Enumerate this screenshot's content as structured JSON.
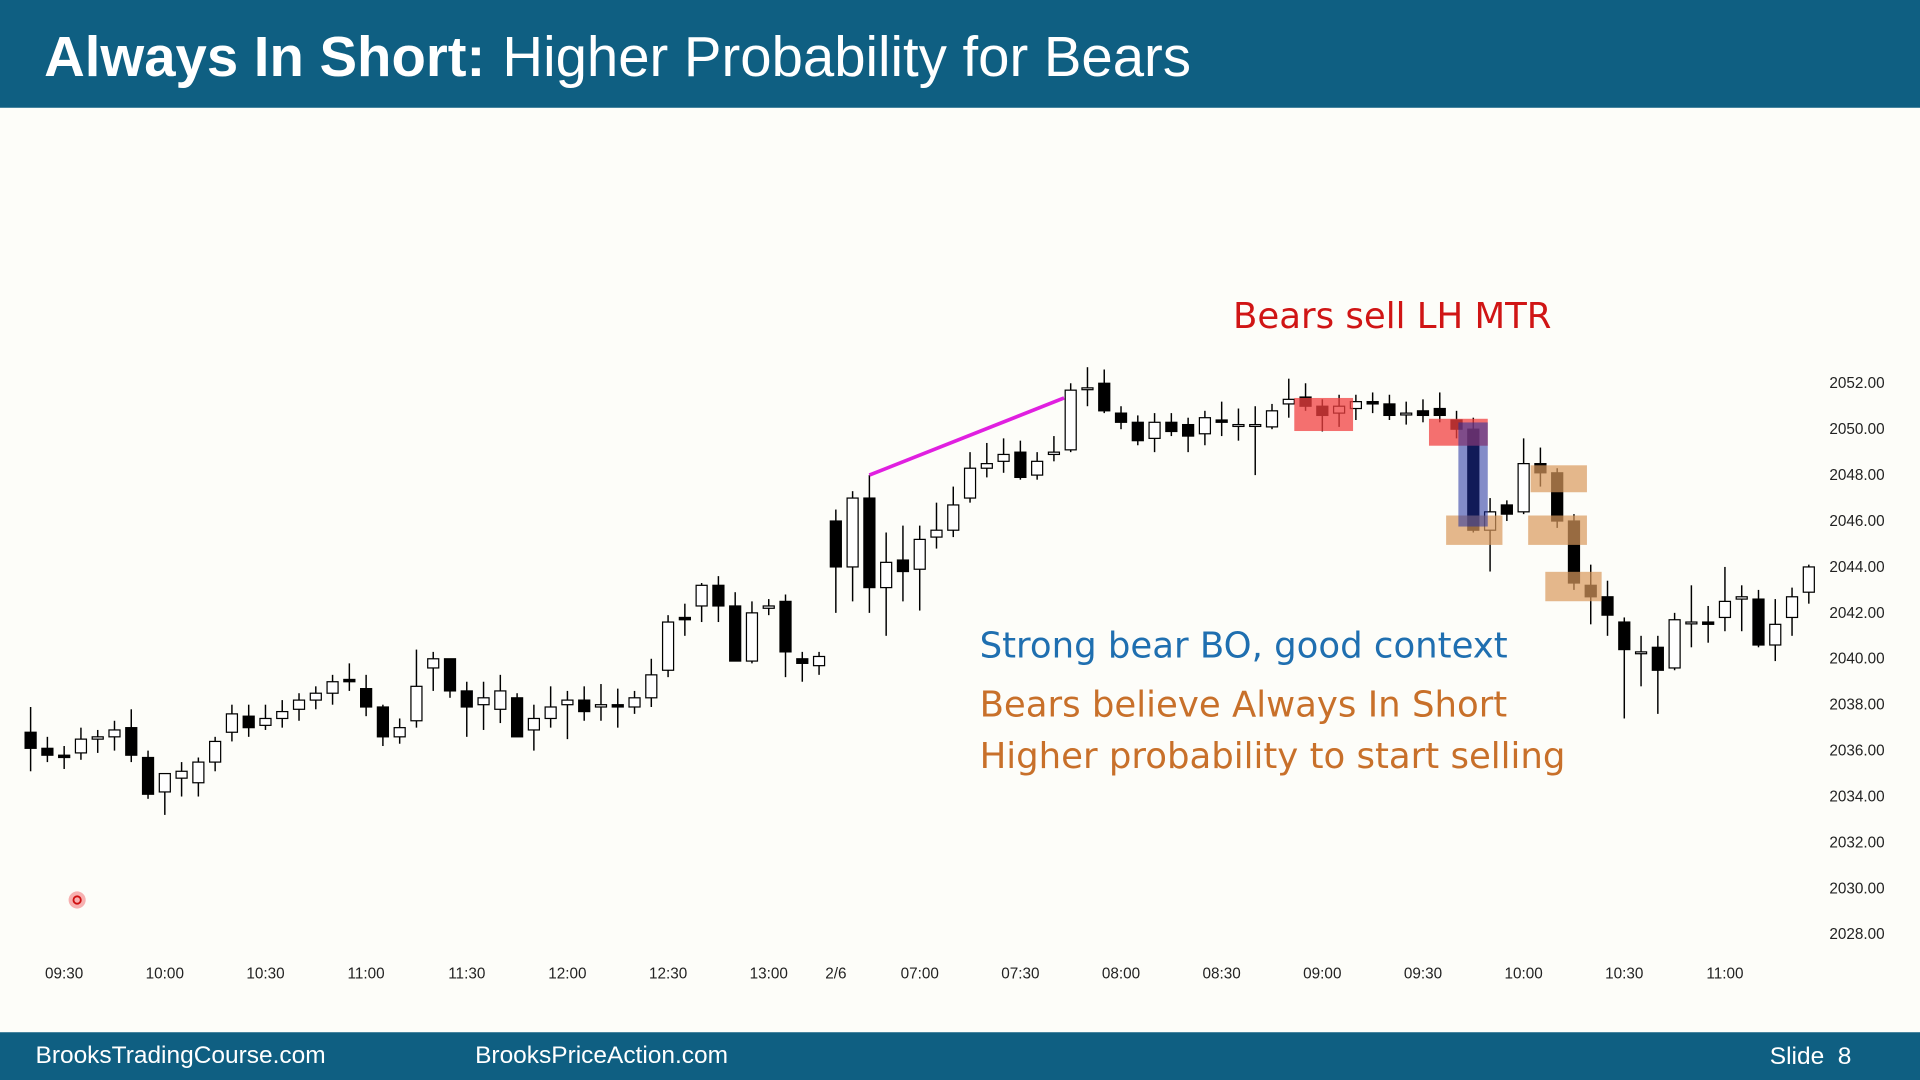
{
  "header": {
    "title_bold": "Always In Short:",
    "title_rest": "Higher Probability for Bears"
  },
  "chart_data": {
    "type": "candlestick",
    "categories": [
      null,
      null,
      "09:30",
      null,
      null,
      null,
      null,
      null,
      "10:00",
      null,
      null,
      null,
      null,
      null,
      "10:30",
      null,
      null,
      null,
      null,
      null,
      "11:00",
      null,
      null,
      null,
      null,
      null,
      "11:30",
      null,
      null,
      null,
      null,
      null,
      "12:00",
      null,
      null,
      null,
      null,
      null,
      "12:30",
      null,
      null,
      null,
      null,
      null,
      "13:00",
      null,
      null,
      null,
      "2/6",
      null,
      null,
      null,
      null,
      "07:00",
      null,
      null,
      null,
      null,
      null,
      "07:30",
      null,
      null,
      null,
      null,
      null,
      "08:00",
      null,
      null,
      null,
      null,
      null,
      "08:30",
      null,
      null,
      null,
      null,
      null,
      "09:00",
      null,
      null,
      null,
      null,
      null,
      "09:30",
      null,
      null,
      null,
      null,
      null,
      "10:00",
      null,
      null,
      null,
      null,
      null,
      "10:30",
      null,
      null,
      null,
      null,
      null,
      "11:00",
      null,
      null,
      null,
      null,
      null
    ],
    "ohlc": [
      [
        2036.8,
        2037.9,
        2035.1,
        2036.1
      ],
      [
        2036.1,
        2036.6,
        2035.5,
        2035.8
      ],
      [
        2035.8,
        2036.2,
        2035.2,
        2035.7
      ],
      [
        2035.9,
        2037.0,
        2035.6,
        2036.5
      ],
      [
        2036.5,
        2036.9,
        2035.9,
        2036.6
      ],
      [
        2036.6,
        2037.3,
        2036.0,
        2036.9
      ],
      [
        2037.0,
        2037.8,
        2035.5,
        2035.8
      ],
      [
        2035.7,
        2036.0,
        2033.9,
        2034.1
      ],
      [
        2034.2,
        2035.0,
        2033.2,
        2035.0
      ],
      [
        2034.8,
        2035.5,
        2034.0,
        2035.1
      ],
      [
        2034.6,
        2035.7,
        2034.0,
        2035.5
      ],
      [
        2035.5,
        2036.6,
        2035.1,
        2036.4
      ],
      [
        2036.8,
        2038.0,
        2036.4,
        2037.6
      ],
      [
        2037.5,
        2038.0,
        2036.6,
        2037.0
      ],
      [
        2037.1,
        2038.0,
        2036.9,
        2037.4
      ],
      [
        2037.4,
        2038.2,
        2037.0,
        2037.7
      ],
      [
        2037.8,
        2038.5,
        2037.3,
        2038.2
      ],
      [
        2038.2,
        2038.8,
        2037.8,
        2038.5
      ],
      [
        2038.5,
        2039.3,
        2038.0,
        2039.0
      ],
      [
        2039.1,
        2039.8,
        2038.6,
        2039.0
      ],
      [
        2038.7,
        2039.3,
        2037.5,
        2037.9
      ],
      [
        2037.9,
        2038.0,
        2036.2,
        2036.6
      ],
      [
        2036.6,
        2037.4,
        2036.3,
        2037.0
      ],
      [
        2037.3,
        2040.4,
        2037.0,
        2038.8
      ],
      [
        2039.6,
        2040.3,
        2038.6,
        2040.0
      ],
      [
        2040.0,
        2040.0,
        2038.3,
        2038.6
      ],
      [
        2038.6,
        2039.0,
        2036.6,
        2037.9
      ],
      [
        2038.0,
        2039.0,
        2036.9,
        2038.3
      ],
      [
        2037.8,
        2039.3,
        2037.2,
        2038.6
      ],
      [
        2038.3,
        2038.5,
        2036.6,
        2036.6
      ],
      [
        2036.9,
        2038.0,
        2036.0,
        2037.4
      ],
      [
        2037.4,
        2038.8,
        2037.0,
        2037.9
      ],
      [
        2038.0,
        2038.6,
        2036.5,
        2038.2
      ],
      [
        2038.2,
        2038.8,
        2037.3,
        2037.7
      ],
      [
        2037.9,
        2038.9,
        2037.3,
        2038.0
      ],
      [
        2038.0,
        2038.7,
        2037.0,
        2037.9
      ],
      [
        2037.9,
        2038.6,
        2037.6,
        2038.3
      ],
      [
        2038.3,
        2040.0,
        2037.9,
        2039.3
      ],
      [
        2039.5,
        2041.9,
        2039.2,
        2041.6
      ],
      [
        2041.8,
        2042.4,
        2041.0,
        2041.7
      ],
      [
        2042.3,
        2043.3,
        2041.6,
        2043.2
      ],
      [
        2043.2,
        2043.6,
        2041.6,
        2042.3
      ],
      [
        2042.3,
        2042.9,
        2039.9,
        2039.9
      ],
      [
        2039.9,
        2042.5,
        2039.8,
        2042.0
      ],
      [
        2042.2,
        2042.6,
        2041.9,
        2042.3
      ],
      [
        2042.5,
        2042.8,
        2039.2,
        2040.3
      ],
      [
        2040.0,
        2040.3,
        2039.0,
        2039.8
      ],
      [
        2039.7,
        2040.3,
        2039.3,
        2040.1
      ],
      [
        2046.0,
        2046.5,
        2042.0,
        2044.0
      ],
      [
        2044.0,
        2047.3,
        2042.5,
        2047.0
      ],
      [
        2047.0,
        2048.0,
        2042.0,
        2043.1
      ],
      [
        2043.1,
        2045.5,
        2041.0,
        2044.2
      ],
      [
        2044.3,
        2045.8,
        2042.5,
        2043.8
      ],
      [
        2043.9,
        2045.8,
        2042.1,
        2045.2
      ],
      [
        2045.3,
        2046.8,
        2044.8,
        2045.6
      ],
      [
        2045.6,
        2047.5,
        2045.3,
        2046.7
      ],
      [
        2047.0,
        2049.0,
        2046.8,
        2048.3
      ],
      [
        2048.3,
        2049.4,
        2047.9,
        2048.5
      ],
      [
        2048.6,
        2049.6,
        2048.1,
        2048.9
      ],
      [
        2049.0,
        2049.5,
        2047.8,
        2047.9
      ],
      [
        2048.0,
        2049.0,
        2047.8,
        2048.6
      ],
      [
        2048.9,
        2049.7,
        2048.6,
        2049.0
      ],
      [
        2049.1,
        2052.0,
        2049.0,
        2051.7
      ],
      [
        2051.8,
        2052.7,
        2051.0,
        2051.8
      ],
      [
        2052.0,
        2052.6,
        2050.7,
        2050.8
      ],
      [
        2050.7,
        2051.0,
        2050.0,
        2050.3
      ],
      [
        2050.3,
        2050.6,
        2049.3,
        2049.5
      ],
      [
        2049.6,
        2050.7,
        2049.0,
        2050.3
      ],
      [
        2050.3,
        2050.7,
        2049.7,
        2049.9
      ],
      [
        2050.2,
        2050.5,
        2049.0,
        2049.7
      ],
      [
        2049.8,
        2050.8,
        2049.3,
        2050.5
      ],
      [
        2050.4,
        2051.2,
        2049.7,
        2050.3
      ],
      [
        2050.2,
        2050.9,
        2049.5,
        2050.2
      ],
      [
        2050.2,
        2051.0,
        2048.0,
        2050.2
      ],
      [
        2050.1,
        2051.1,
        2050.0,
        2050.8
      ],
      [
        2051.1,
        2052.2,
        2050.5,
        2051.3
      ],
      [
        2051.4,
        2052.0,
        2050.8,
        2051.0
      ],
      [
        2051.0,
        2051.3,
        2049.9,
        2050.6
      ],
      [
        2050.7,
        2051.5,
        2050.1,
        2051.0
      ],
      [
        2050.9,
        2051.5,
        2050.4,
        2051.2
      ],
      [
        2051.2,
        2051.6,
        2050.7,
        2051.1
      ],
      [
        2051.1,
        2051.5,
        2050.4,
        2050.6
      ],
      [
        2050.7,
        2051.2,
        2050.2,
        2050.7
      ],
      [
        2050.8,
        2051.3,
        2050.3,
        2050.6
      ],
      [
        2050.9,
        2051.6,
        2050.3,
        2050.6
      ],
      [
        2050.4,
        2050.8,
        2049.6,
        2050.0
      ],
      [
        2050.0,
        2050.5,
        2045.5,
        2045.6
      ],
      [
        2045.6,
        2047.0,
        2043.8,
        2046.4
      ],
      [
        2046.7,
        2046.9,
        2046.0,
        2046.3
      ],
      [
        2046.4,
        2049.6,
        2046.3,
        2048.5
      ],
      [
        2048.5,
        2049.2,
        2047.5,
        2048.1
      ],
      [
        2048.1,
        2048.3,
        2045.7,
        2046.0
      ],
      [
        2046.0,
        2046.3,
        2043.0,
        2043.3
      ],
      [
        2043.2,
        2044.1,
        2041.5,
        2042.7
      ],
      [
        2042.7,
        2043.4,
        2041.0,
        2041.9
      ],
      [
        2041.6,
        2041.8,
        2037.4,
        2040.4
      ],
      [
        2040.3,
        2041.0,
        2038.8,
        2040.3
      ],
      [
        2040.5,
        2041.0,
        2037.6,
        2039.5
      ],
      [
        2039.6,
        2042.0,
        2039.5,
        2041.7
      ],
      [
        2041.6,
        2043.2,
        2040.5,
        2041.6
      ],
      [
        2041.6,
        2042.3,
        2040.7,
        2041.5
      ],
      [
        2041.8,
        2044.0,
        2041.2,
        2042.5
      ],
      [
        2042.6,
        2043.2,
        2041.2,
        2042.7
      ],
      [
        2042.6,
        2043.0,
        2040.5,
        2040.6
      ],
      [
        2040.6,
        2042.6,
        2039.9,
        2041.5
      ],
      [
        2041.8,
        2043.1,
        2041.0,
        2042.7
      ],
      [
        2042.9,
        2044.1,
        2042.4,
        2044.0
      ]
    ],
    "ylim": [
      2027,
      2054
    ],
    "yticks": [
      {
        "value": 2028,
        "label": "2028.00"
      },
      {
        "value": 2030,
        "label": "2030.00"
      },
      {
        "value": 2032,
        "label": "2032.00"
      },
      {
        "value": 2034,
        "label": "2034.00"
      },
      {
        "value": 2036,
        "label": "2036.00"
      },
      {
        "value": 2038,
        "label": "2038.00"
      },
      {
        "value": 2040,
        "label": "2040.00"
      },
      {
        "value": 2042,
        "label": "2042.00"
      },
      {
        "value": 2044,
        "label": "2044.00"
      },
      {
        "value": 2046,
        "label": "2046.00"
      },
      {
        "value": 2048,
        "label": "2048.00"
      },
      {
        "value": 2050,
        "label": "2050.00"
      },
      {
        "value": 2052,
        "label": "2052.00"
      }
    ],
    "annotations": [
      "Bears sell LH MTR",
      "Strong bear BO, good context",
      "Bears believe Always In Short",
      "Higher probability to start selling"
    ]
  },
  "footer": {
    "left": "BrooksTradingCourse.com",
    "middle": "BrooksPriceAction.com",
    "slide": "Slide  8"
  }
}
